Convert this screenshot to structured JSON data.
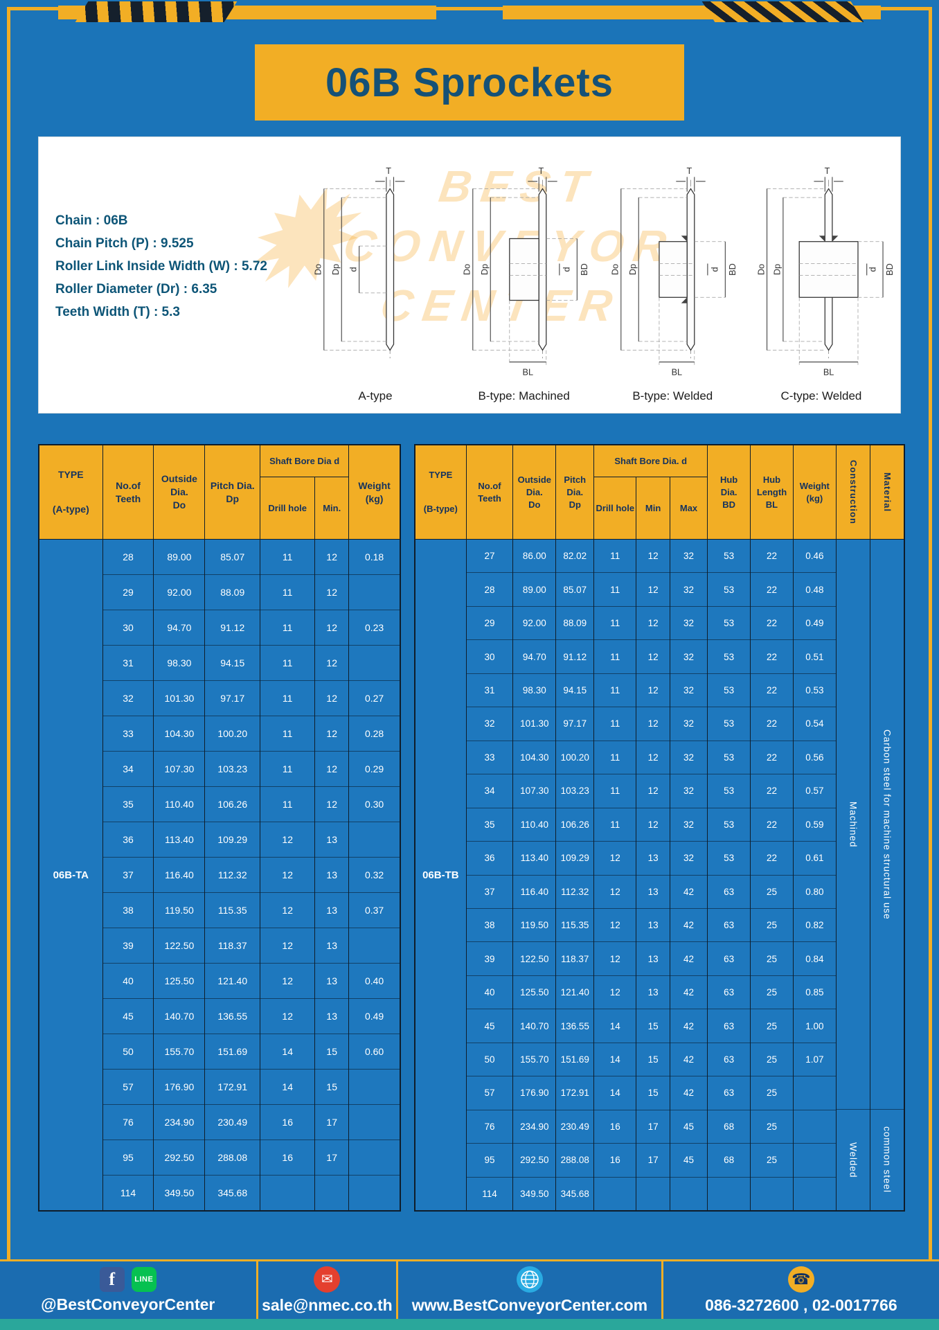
{
  "page": {
    "title": "06B Sprockets"
  },
  "colors": {
    "accent_yellow": "#f2ae25",
    "page_blue": "#1b74b8",
    "table_body_blue": "#1e78be",
    "dark_navy_text": "#14325e",
    "title_teal": "#155177",
    "teal_strip": "#2aa79b",
    "facebook_blue": "#3a5a98",
    "line_green": "#06c151",
    "mail_red": "#e4402e",
    "globe_blue": "#29abe2"
  },
  "specs": {
    "chain": "Chain : 06B",
    "pitch": "Chain Pitch (P) : 9.525",
    "roller_width": "Roller Link Inside Width (W) : 5.72",
    "roller_dia": "Roller Diameter (Dr) : 6.35",
    "teeth_width": "Teeth Width (T) : 5.3"
  },
  "watermark": {
    "line1": "BEST",
    "line2": "CONVEYOR",
    "line3": "CENTER",
    "logo": "✹"
  },
  "diagrams": {
    "labels": [
      "A-type",
      "B-type: Machined",
      "B-type: Welded",
      "C-type: Welded"
    ],
    "dims": {
      "t": "T",
      "outside": "Do",
      "pitch": "Dp",
      "bore": "d",
      "hub_dia": "BD",
      "hub_len": "BL"
    }
  },
  "table_a": {
    "type_line1": "TYPE",
    "type_line2": "(A-type)",
    "type_value": "06B-TA",
    "headers": {
      "teeth": "No.of\nTeeth",
      "outside": "Outside\nDia.\nDo",
      "pitch": "Pitch Dia.\nDp",
      "shaft_bore": "Shaft Bore Dia d",
      "drill": "Drill hole",
      "min": "Min.",
      "weight": "Weight\n(kg)"
    },
    "columns": {
      "teeth": [
        "28",
        "29",
        "30",
        "31",
        "32",
        "33",
        "34",
        "35",
        "36",
        "37",
        "38",
        "39",
        "40",
        "45",
        "50",
        "57",
        "76",
        "95",
        "114"
      ],
      "outside_dia": [
        "89.00",
        "92.00",
        "94.70",
        "98.30",
        "101.30",
        "104.30",
        "107.30",
        "110.40",
        "113.40",
        "116.40",
        "119.50",
        "122.50",
        "125.50",
        "140.70",
        "155.70",
        "176.90",
        "234.90",
        "292.50",
        "349.50"
      ],
      "pitch_dia": [
        "85.07",
        "88.09",
        "91.12",
        "94.15",
        "97.17",
        "100.20",
        "103.23",
        "106.26",
        "109.29",
        "112.32",
        "115.35",
        "118.37",
        "121.40",
        "136.55",
        "151.69",
        "172.91",
        "230.49",
        "288.08",
        "345.68"
      ],
      "drill_hole": [
        "11",
        "11",
        "11",
        "11",
        "11",
        "11",
        "11",
        "11",
        "12",
        "12",
        "12",
        "12",
        "12",
        "12",
        "14",
        "14",
        "16",
        "16",
        ""
      ],
      "min": [
        "12",
        "12",
        "12",
        "12",
        "12",
        "12",
        "12",
        "12",
        "13",
        "13",
        "13",
        "13",
        "13",
        "13",
        "15",
        "15",
        "17",
        "17",
        ""
      ],
      "weight": [
        "0.18",
        "",
        "0.23",
        "",
        "0.27",
        "0.28",
        "0.29",
        "0.30",
        "",
        "0.32",
        "0.37",
        "",
        "0.40",
        "0.49",
        "0.60",
        "",
        "",
        "",
        ""
      ]
    }
  },
  "table_b": {
    "type_line1": "TYPE",
    "type_line2": "(B-type)",
    "type_value": "06B-TB",
    "headers": {
      "teeth": "No.of\nTeeth",
      "outside": "Outside\nDia.\nDo",
      "pitch": "Pitch\nDia.\nDp",
      "shaft_bore": "Shaft Bore Dia. d",
      "drill": "Drill hole",
      "min": "Min",
      "max": "Max",
      "hub_dia": "Hub\nDia.\nBD",
      "hub_len": "Hub\nLength\nBL",
      "weight": "Weight\n(kg)",
      "construction": "Construction",
      "material": "Material"
    },
    "columns": {
      "teeth": [
        "27",
        "28",
        "29",
        "30",
        "31",
        "32",
        "33",
        "34",
        "35",
        "36",
        "37",
        "38",
        "39",
        "40",
        "45",
        "50",
        "57",
        "76",
        "95",
        "114"
      ],
      "outside_dia": [
        "86.00",
        "89.00",
        "92.00",
        "94.70",
        "98.30",
        "101.30",
        "104.30",
        "107.30",
        "110.40",
        "113.40",
        "116.40",
        "119.50",
        "122.50",
        "125.50",
        "140.70",
        "155.70",
        "176.90",
        "234.90",
        "292.50",
        "349.50"
      ],
      "pitch_dia": [
        "82.02",
        "85.07",
        "88.09",
        "91.12",
        "94.15",
        "97.17",
        "100.20",
        "103.23",
        "106.26",
        "109.29",
        "112.32",
        "115.35",
        "118.37",
        "121.40",
        "136.55",
        "151.69",
        "172.91",
        "230.49",
        "288.08",
        "345.68"
      ],
      "drill_hole": [
        "11",
        "11",
        "11",
        "11",
        "11",
        "11",
        "11",
        "11",
        "11",
        "12",
        "12",
        "12",
        "12",
        "12",
        "14",
        "14",
        "14",
        "16",
        "16",
        ""
      ],
      "min": [
        "12",
        "12",
        "12",
        "12",
        "12",
        "12",
        "12",
        "12",
        "12",
        "13",
        "13",
        "13",
        "13",
        "13",
        "15",
        "15",
        "15",
        "17",
        "17",
        ""
      ],
      "max": [
        "32",
        "32",
        "32",
        "32",
        "32",
        "32",
        "32",
        "32",
        "32",
        "32",
        "42",
        "42",
        "42",
        "42",
        "42",
        "42",
        "42",
        "45",
        "45",
        ""
      ],
      "hub_dia": [
        "53",
        "53",
        "53",
        "53",
        "53",
        "53",
        "53",
        "53",
        "53",
        "53",
        "63",
        "63",
        "63",
        "63",
        "63",
        "63",
        "63",
        "68",
        "68",
        ""
      ],
      "hub_len": [
        "22",
        "22",
        "22",
        "22",
        "22",
        "22",
        "22",
        "22",
        "22",
        "22",
        "25",
        "25",
        "25",
        "25",
        "25",
        "25",
        "25",
        "25",
        "25",
        ""
      ],
      "weight": [
        "0.46",
        "0.48",
        "0.49",
        "0.51",
        "0.53",
        "0.54",
        "0.56",
        "0.57",
        "0.59",
        "0.61",
        "0.80",
        "0.82",
        "0.84",
        "0.85",
        "1.00",
        "1.07",
        "",
        "",
        "",
        ""
      ]
    },
    "construction": [
      {
        "label": "Machined",
        "rows": 17
      },
      {
        "label": "Welded",
        "rows": 3
      }
    ],
    "material": [
      {
        "label": "Carbon steel for machine structural use",
        "rows": 17
      },
      {
        "label": "common steel",
        "rows": 3
      }
    ]
  },
  "footer": {
    "facebook_label": "f",
    "line_label": "LINE",
    "social_text": "@BestConveyorCenter",
    "email": "sale@nmec.co.th",
    "website": "www.BestConveyorCenter.com",
    "phone": "086-3272600 , 02-0017766"
  }
}
